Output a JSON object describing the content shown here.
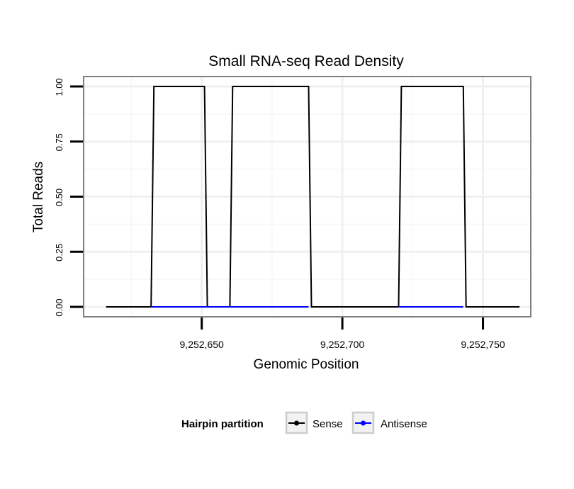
{
  "chart_data": {
    "type": "line",
    "title": "Small RNA-seq Read Density",
    "xlabel": "Genomic Position",
    "ylabel": "Total Reads",
    "xlim": [
      9252608,
      9252767
    ],
    "ylim": [
      -0.045,
      1.045
    ],
    "x_ticks": [
      9252650,
      9252700,
      9252750
    ],
    "x_tick_labels": [
      "9,252,650",
      "9,252,700",
      "9,252,750"
    ],
    "y_ticks": [
      0,
      0.25,
      0.5,
      0.75,
      1
    ],
    "y_tick_labels": [
      "0.00",
      "0.25",
      "0.50",
      "0.75",
      "1.00"
    ],
    "grid": true,
    "legend": {
      "title": "Hairpin partition",
      "placement": "bottom",
      "entries": [
        "Sense",
        "Antisense"
      ]
    },
    "series": [
      {
        "name": "Sense",
        "color": "#000000",
        "points": [
          [
            9252616,
            0
          ],
          [
            9252632,
            0
          ],
          [
            9252633,
            1
          ],
          [
            9252651,
            1
          ],
          [
            9252652,
            0
          ],
          [
            9252660,
            0
          ],
          [
            9252661,
            1
          ],
          [
            9252688,
            1
          ],
          [
            9252689,
            0
          ],
          [
            9252720,
            0
          ],
          [
            9252721,
            1
          ],
          [
            9252743,
            1
          ],
          [
            9252744,
            0
          ],
          [
            9252763,
            0
          ]
        ]
      },
      {
        "name": "Antisense",
        "color": "#0000ff",
        "points": [
          [
            9252632,
            0
          ],
          [
            9252688,
            0
          ],
          [
            9252720,
            0
          ],
          [
            9252743,
            0
          ]
        ]
      }
    ]
  }
}
